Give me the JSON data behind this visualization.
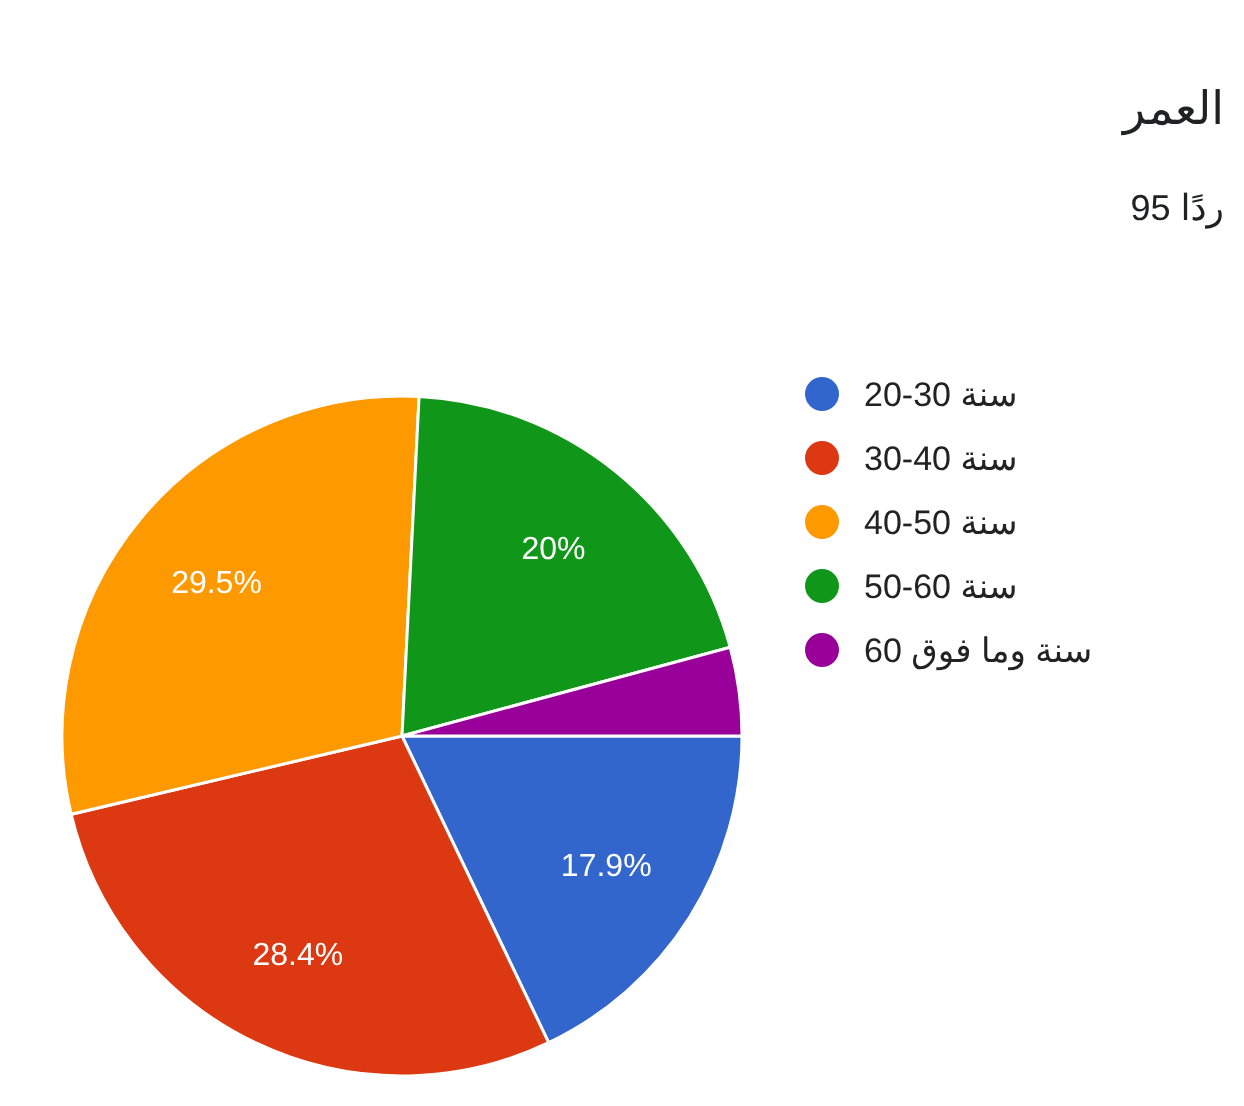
{
  "chart_data": {
    "type": "pie",
    "title": "العمر",
    "subtitle": "95 ردًا",
    "categories": [
      "20-30 سنة",
      "30-40 سنة",
      "40-50 سنة",
      "50-60 سنة",
      "60 سنة وما فوق"
    ],
    "values": [
      17.9,
      28.4,
      29.5,
      20,
      4.2
    ],
    "colors": [
      "#3366cc",
      "#dc3912",
      "#ff9900",
      "#109618",
      "#990099"
    ],
    "value_labels": [
      "17.9%",
      "28.4%",
      "29.5%",
      "20%",
      null
    ],
    "legend": "right"
  }
}
